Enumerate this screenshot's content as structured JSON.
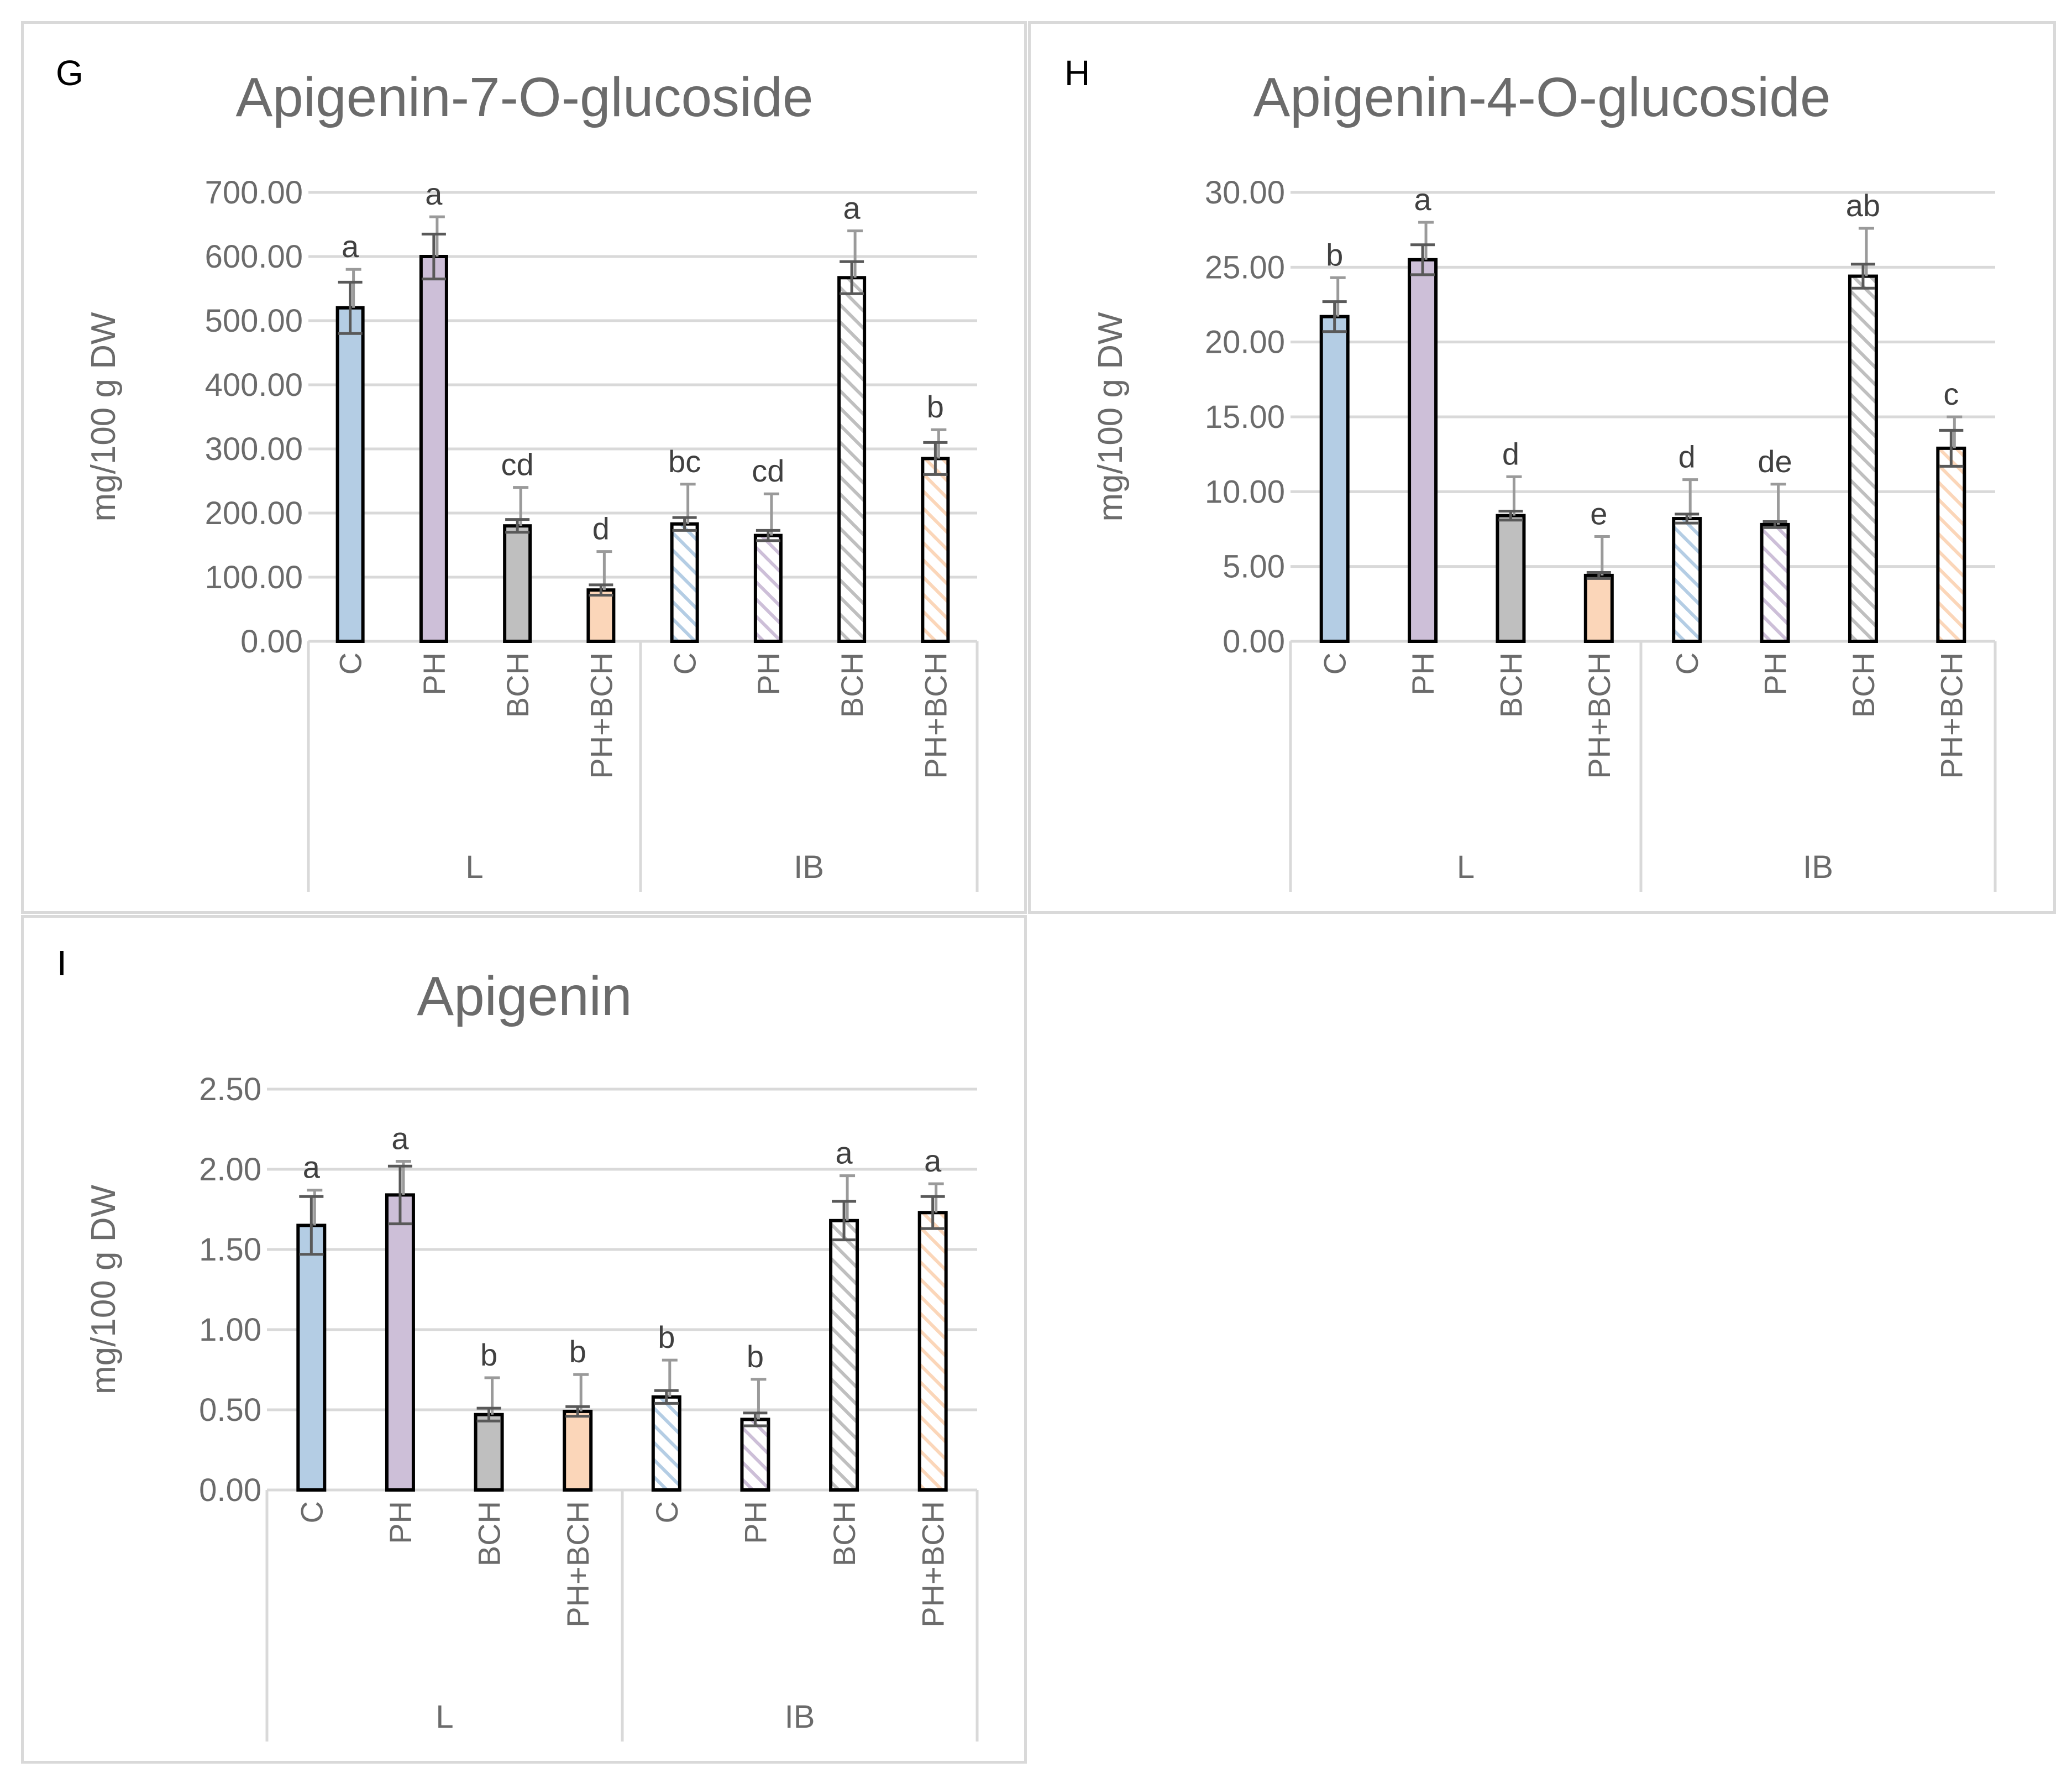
{
  "colors": {
    "C": "#b4cde4",
    "PH": "#cdbfd8",
    "BCH": "#bfbfbf",
    "PH+BCH": "#fbd6b9",
    "axis": "#d9d9d9",
    "grid": "#d9d9d9",
    "text": "#6b6b6b",
    "bar_outline": "#000000",
    "error_bar": "#595959",
    "sd_bar": "#9a9a9a"
  },
  "chart_data": [
    {
      "panel": "G",
      "type": "bar",
      "title": "Apigenin-7-O-glucoside",
      "ylabel": "mg/100 g DW",
      "xlabel": "",
      "ylim": [
        0,
        700
      ],
      "yticks": [
        "0.00",
        "100.00",
        "200.00",
        "300.00",
        "400.00",
        "500.00",
        "600.00",
        "700.00"
      ],
      "ytick_values": [
        0,
        100,
        200,
        300,
        400,
        500,
        600,
        700
      ],
      "groups": [
        "L",
        "IB"
      ],
      "categories": [
        "C",
        "PH",
        "BCH",
        "PH+BCH",
        "C",
        "PH",
        "BCH",
        "PH+BCH"
      ],
      "values": [
        520,
        600,
        180,
        80,
        183,
        165,
        567,
        285
      ],
      "error": [
        40,
        35,
        10,
        8,
        10,
        8,
        25,
        25
      ],
      "sd_top": [
        580,
        662,
        240,
        140,
        245,
        230,
        640,
        330
      ],
      "letters": [
        "a",
        "a",
        "cd",
        "d",
        "bc",
        "cd",
        "a",
        "b"
      ],
      "hatched": [
        false,
        false,
        false,
        false,
        true,
        true,
        true,
        true
      ]
    },
    {
      "panel": "H",
      "type": "bar",
      "title": "Apigenin-4-O-glucoside",
      "ylabel": "mg/100 g DW",
      "xlabel": "",
      "ylim": [
        0,
        30
      ],
      "yticks": [
        "0.00",
        "5.00",
        "10.00",
        "15.00",
        "20.00",
        "25.00",
        "30.00"
      ],
      "ytick_values": [
        0,
        5,
        10,
        15,
        20,
        25,
        30
      ],
      "groups": [
        "L",
        "IB"
      ],
      "categories": [
        "C",
        "PH",
        "BCH",
        "PH+BCH",
        "C",
        "PH",
        "BCH",
        "PH+BCH"
      ],
      "values": [
        21.7,
        25.5,
        8.4,
        4.4,
        8.2,
        7.8,
        24.4,
        12.9
      ],
      "error": [
        1.0,
        1.0,
        0.3,
        0.2,
        0.3,
        0.2,
        0.8,
        1.2
      ],
      "sd_top": [
        24.3,
        28.0,
        11.0,
        7.0,
        10.8,
        10.5,
        27.6,
        15.0
      ],
      "letters": [
        "b",
        "a",
        "d",
        "e",
        "d",
        "de",
        "ab",
        "c"
      ],
      "hatched": [
        false,
        false,
        false,
        false,
        true,
        true,
        true,
        true
      ]
    },
    {
      "panel": "I",
      "type": "bar",
      "title": "Apigenin",
      "ylabel": "mg/100 g DW",
      "xlabel": "",
      "ylim": [
        0,
        2.5
      ],
      "yticks": [
        "0.00",
        "0.50",
        "1.00",
        "1.50",
        "2.00",
        "2.50"
      ],
      "ytick_values": [
        0,
        0.5,
        1.0,
        1.5,
        2.0,
        2.5
      ],
      "groups": [
        "L",
        "IB"
      ],
      "categories": [
        "C",
        "PH",
        "BCH",
        "PH+BCH",
        "C",
        "PH",
        "BCH",
        "PH+BCH"
      ],
      "values": [
        1.65,
        1.84,
        0.47,
        0.49,
        0.58,
        0.44,
        1.68,
        1.73
      ],
      "error": [
        0.18,
        0.18,
        0.04,
        0.03,
        0.04,
        0.04,
        0.12,
        0.1
      ],
      "sd_top": [
        1.87,
        2.05,
        0.7,
        0.72,
        0.81,
        0.69,
        1.96,
        1.91
      ],
      "letters": [
        "a",
        "a",
        "b",
        "b",
        "b",
        "b",
        "a",
        "a"
      ],
      "hatched": [
        false,
        false,
        false,
        false,
        true,
        true,
        true,
        true
      ]
    }
  ]
}
